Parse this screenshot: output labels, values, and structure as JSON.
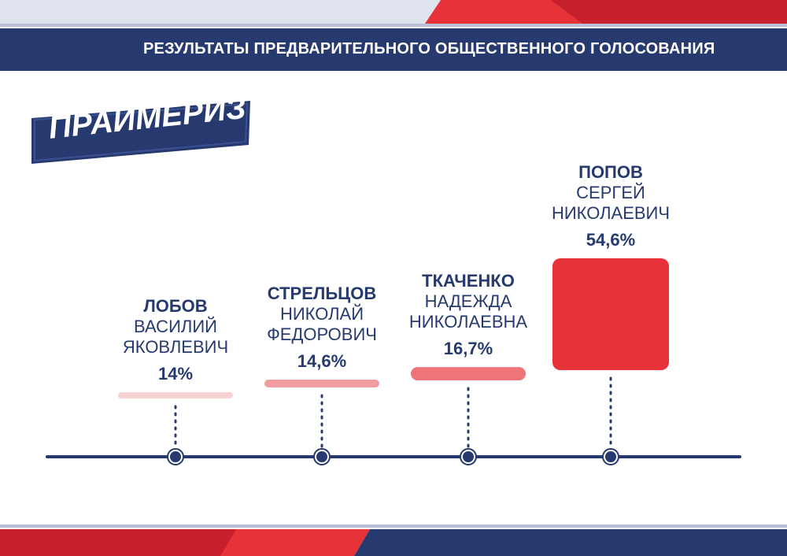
{
  "header": {
    "title": "РЕЗУЛЬТАТЫ ПРЕДВАРИТЕЛЬНОГО ОБЩЕСТВЕННОГО ГОЛОСОВАНИЯ",
    "badge": "ПРАЙМЕРИЗ"
  },
  "colors": {
    "navy": "#263a6f",
    "red": "#e8323a",
    "bar_lightest": "#f6d2d3",
    "bar_light": "#f19ca0",
    "bar_medium": "#ef7479",
    "bar_strong": "#e8323a"
  },
  "chart_data": {
    "type": "bar",
    "title": "",
    "unit": "%",
    "candidates": [
      {
        "surname": "ЛОБОВ",
        "name_line1": "ВАСИЛИЙ",
        "name_line2": "ЯКОВЛЕВИЧ",
        "value": 14,
        "label": "14%"
      },
      {
        "surname": "СТРЕЛЬЦОВ",
        "name_line1": "НИКОЛАЙ",
        "name_line2": "ФЕДОРОВИЧ",
        "value": 14.6,
        "label": "14,6%"
      },
      {
        "surname": "ТКАЧЕНКО",
        "name_line1": "НАДЕЖДА",
        "name_line2": "НИКОЛАЕВНА",
        "value": 16.7,
        "label": "16,7%"
      },
      {
        "surname": "ПОПОВ",
        "name_line1": "СЕРГЕЙ",
        "name_line2": "НИКОЛАЕВИЧ",
        "value": 54.6,
        "label": "54,6%"
      }
    ]
  }
}
